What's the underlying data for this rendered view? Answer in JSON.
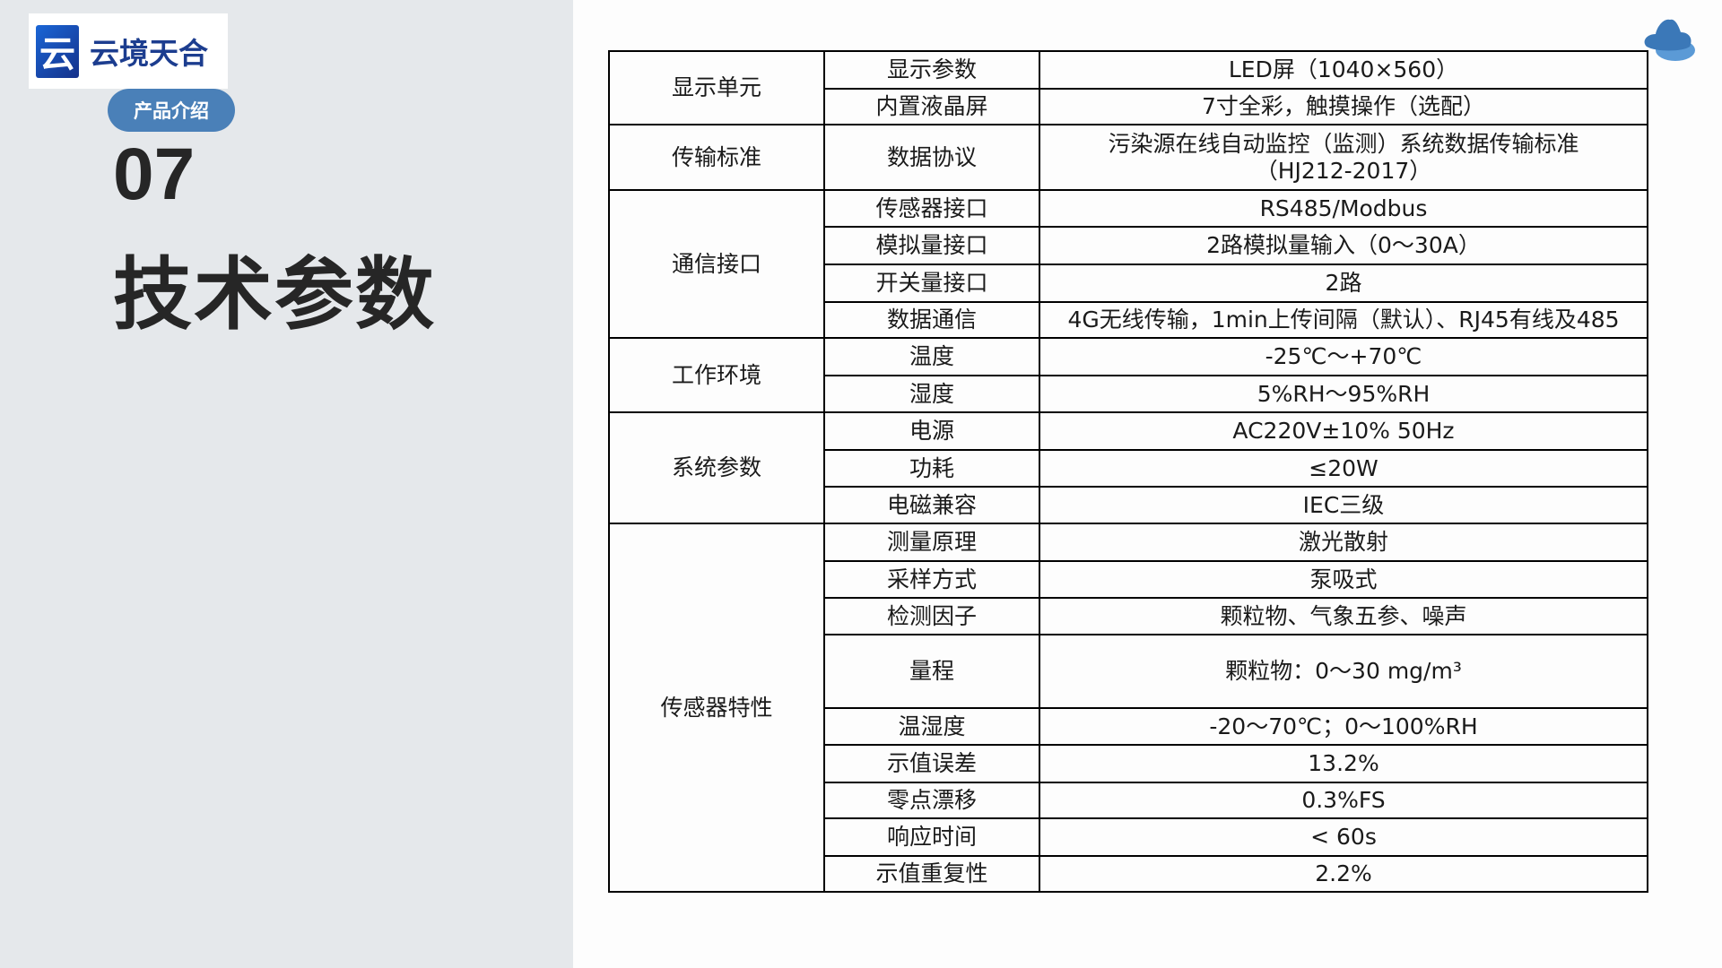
{
  "brand": {
    "logo_mark": "云",
    "name": "云境天合"
  },
  "section_badge": "产品介绍",
  "section_number": "07",
  "section_title": "技术参数",
  "icons": {
    "top_right": "cloud-icon"
  },
  "colors": {
    "accent": "#4a80b8",
    "left_panel": "#e5e8eb",
    "logo_blue": "#1c3d8f"
  },
  "spec_table": {
    "groups": [
      {
        "category": "显示单元",
        "rows": [
          {
            "param": "显示参数",
            "value": "LED屏（1040×560）"
          },
          {
            "param": "内置液晶屏",
            "value": "7寸全彩，触摸操作（选配）"
          }
        ]
      },
      {
        "category": "传输标准",
        "rows": [
          {
            "param": "数据协议",
            "value": "污染源在线自动监控（监测）系统数据传输标准（HJ212-2017）"
          }
        ]
      },
      {
        "category": "通信接口",
        "rows": [
          {
            "param": "传感器接口",
            "value": "RS485/Modbus"
          },
          {
            "param": "模拟量接口",
            "value": "2路模拟量输入（0～30A）"
          },
          {
            "param": "开关量接口",
            "value": "2路"
          },
          {
            "param": "数据通信",
            "value": "4G无线传输，1min上传间隔（默认）、RJ45有线及485"
          }
        ]
      },
      {
        "category": "工作环境",
        "rows": [
          {
            "param": "温度",
            "value": "-25℃～+70℃"
          },
          {
            "param": "湿度",
            "value": "5%RH～95%RH"
          }
        ]
      },
      {
        "category": "系统参数",
        "rows": [
          {
            "param": "电源",
            "value": "AC220V±10% 50Hz"
          },
          {
            "param": "功耗",
            "value": "≤20W"
          },
          {
            "param": "电磁兼容",
            "value": "IEC三级"
          }
        ]
      },
      {
        "category": "传感器特性",
        "rows": [
          {
            "param": "测量原理",
            "value": "激光散射"
          },
          {
            "param": "采样方式",
            "value": "泵吸式"
          },
          {
            "param": "检测因子",
            "value": "颗粒物、气象五参、噪声"
          },
          {
            "param": "量程",
            "value": "颗粒物：0～30 mg/m³"
          },
          {
            "param": "温湿度",
            "value": "-20～70℃；0～100%RH"
          },
          {
            "param": "示值误差",
            "value": "13.2%"
          },
          {
            "param": "零点漂移",
            "value": "0.3%FS"
          },
          {
            "param": "响应时间",
            "value": "< 60s"
          },
          {
            "param": "示值重复性",
            "value": "2.2%"
          }
        ]
      }
    ]
  }
}
